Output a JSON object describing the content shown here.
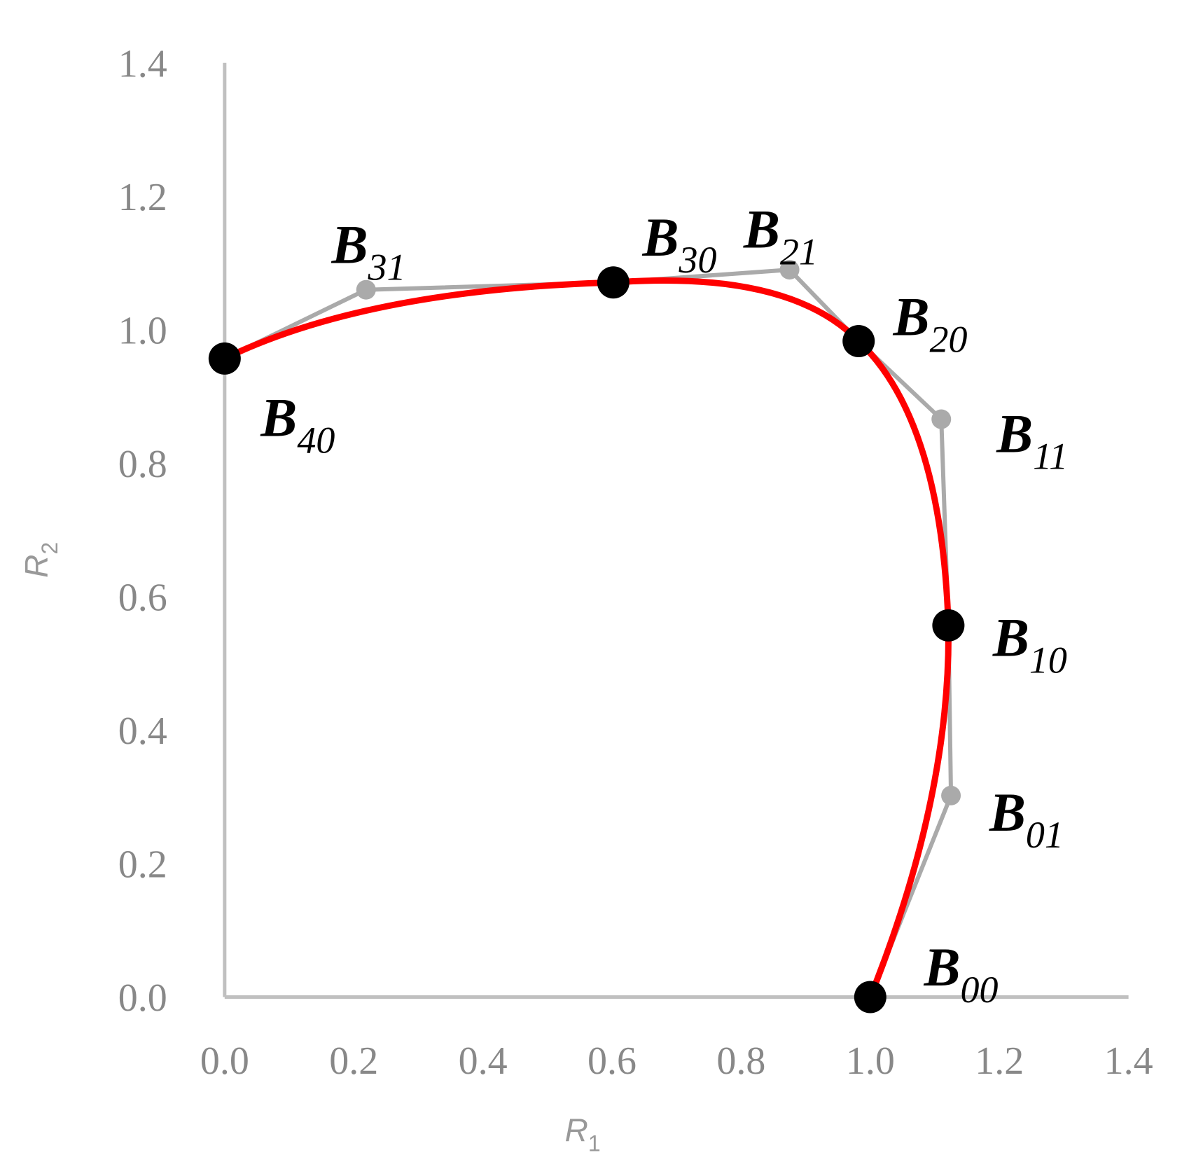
{
  "chart_data": {
    "type": "scatter",
    "x_label": {
      "text": "R",
      "sub": "1"
    },
    "y_label": {
      "text": "R",
      "sub": "2"
    },
    "xlim": [
      0,
      1.4
    ],
    "ylim": [
      0,
      1.4
    ],
    "xticks": [
      {
        "value": 0,
        "label": "0.0"
      },
      {
        "value": 0.2,
        "label": "0.2"
      },
      {
        "value": 0.4,
        "label": "0.4"
      },
      {
        "value": 0.6,
        "label": "0.6"
      },
      {
        "value": 0.8,
        "label": "0.8"
      },
      {
        "value": 1,
        "label": "1.0"
      },
      {
        "value": 1.2,
        "label": "1.2"
      },
      {
        "value": 1.4,
        "label": "1.4"
      }
    ],
    "yticks": [
      {
        "value": 0,
        "label": "0.0"
      },
      {
        "value": 0.2,
        "label": "0.2"
      },
      {
        "value": 0.4,
        "label": "0.4"
      },
      {
        "value": 0.6,
        "label": "0.6"
      },
      {
        "value": 0.8,
        "label": "0.8"
      },
      {
        "value": 1,
        "label": "1.0"
      },
      {
        "value": 1.2,
        "label": "1.2"
      },
      {
        "value": 1.4,
        "label": "1.4"
      }
    ],
    "axis_color": "#c0c0c0",
    "curve_color": "#ff0000",
    "polygon_color": "#aaaaaa",
    "series": [
      {
        "color": "#000000",
        "x": [
          1.0,
          1.121,
          0.982,
          0.602,
          0.0
        ],
        "values": [
          0.0,
          0.557,
          0.983,
          1.071,
          0.957
        ],
        "labels": [
          {
            "text": "B",
            "sub": "00"
          },
          {
            "text": "B",
            "sub": "10"
          },
          {
            "text": "B",
            "sub": "20"
          },
          {
            "text": "B",
            "sub": "30"
          },
          {
            "text": "B",
            "sub": "40"
          }
        ]
      },
      {
        "color": "#aaaaaa",
        "x": [
          1.125,
          1.11,
          0.875,
          0.219
        ],
        "values": [
          0.302,
          0.866,
          1.09,
          1.06
        ],
        "labels": [
          {
            "text": "B",
            "sub": "01"
          },
          {
            "text": "B",
            "sub": "11"
          },
          {
            "text": "B",
            "sub": "21"
          },
          {
            "text": "B",
            "sub": "31"
          }
        ]
      }
    ]
  }
}
